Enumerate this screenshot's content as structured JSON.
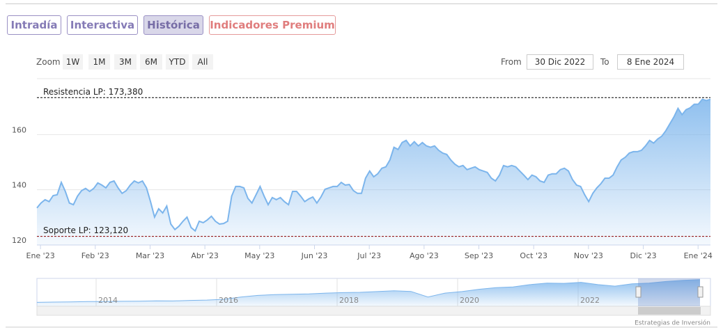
{
  "tabs": [
    "Intradía",
    "Interactiva",
    "Histórica",
    "Indicadores Premium"
  ],
  "range_selector": {
    "zoom_label": "Zoom",
    "buttons": [
      "1W",
      "1M",
      "3M",
      "6M",
      "YTD",
      "All"
    ],
    "from_label": "From",
    "from": "30 Dic 2022",
    "to_label": "To",
    "to": "8 Ene 2024"
  },
  "chart_data": {
    "type": "area",
    "xlim": [
      -0.065,
      12.226
    ],
    "xticks": [
      {
        "value": 0,
        "label": "Ene '23"
      },
      {
        "value": 1,
        "label": "Feb '23"
      },
      {
        "value": 2,
        "label": "Mar '23"
      },
      {
        "value": 3,
        "label": "Abr '23"
      },
      {
        "value": 4,
        "label": "May '23"
      },
      {
        "value": 5,
        "label": "Jun '23"
      },
      {
        "value": 6,
        "label": "Jul '23"
      },
      {
        "value": 7,
        "label": "Ago '23"
      },
      {
        "value": 8,
        "label": "Sep '23"
      },
      {
        "value": 9,
        "label": "Oct '23"
      },
      {
        "value": 10,
        "label": "Nov '23"
      },
      {
        "value": 11,
        "label": "Dic '23"
      },
      {
        "value": 12,
        "label": "Ene '24"
      }
    ],
    "ylim": [
      120,
      180
    ],
    "yticks": [
      120,
      140,
      160
    ],
    "grid": true,
    "series": [
      {
        "color": "#7cb5ec",
        "values": [
          133.4,
          135.2,
          136.4,
          135.7,
          137.9,
          138.2,
          142.7,
          139.4,
          135.2,
          134.6,
          137.7,
          139.7,
          140.5,
          139.4,
          140.5,
          142.5,
          141.7,
          140.7,
          142.7,
          143.2,
          140.7,
          138.7,
          139.7,
          141.7,
          143.2,
          142.5,
          143.2,
          140.7,
          135.7,
          130.1,
          133.1,
          131.6,
          134.1,
          127.6,
          125.6,
          126.8,
          128.6,
          130.1,
          126.3,
          125.1,
          128.6,
          128.1,
          129.1,
          130.4,
          128.6,
          127.6,
          127.8,
          128.6,
          137.7,
          141.2,
          141.2,
          140.7,
          136.9,
          135.2,
          138.2,
          141.2,
          137.7,
          134.6,
          137.2,
          136.4,
          137.2,
          135.7,
          134.6,
          139.4,
          139.4,
          137.7,
          135.7,
          136.7,
          137.4,
          135.2,
          137.4,
          140.2,
          140.7,
          141.2,
          141.2,
          142.7,
          141.7,
          141.9,
          139.7,
          138.7,
          138.7,
          144.2,
          146.8,
          144.7,
          145.8,
          147.8,
          148.3,
          150.8,
          155.4,
          154.6,
          157.1,
          157.9,
          155.9,
          157.4,
          155.9,
          157.1,
          155.9,
          155.4,
          155.9,
          154.3,
          153.3,
          152.8,
          150.8,
          149.3,
          148.3,
          148.8,
          147.3,
          147.8,
          148.3,
          147.3,
          146.8,
          146.3,
          144.2,
          143.2,
          145.3,
          148.8,
          148.3,
          148.8,
          148.3,
          146.8,
          145.3,
          143.7,
          145.3,
          144.7,
          143.2,
          142.7,
          145.3,
          145.8,
          145.8,
          147.3,
          147.8,
          146.8,
          143.7,
          141.7,
          141.2,
          138.2,
          135.7,
          138.7,
          140.7,
          142.2,
          144.2,
          144.2,
          145.3,
          148.3,
          150.8,
          151.8,
          153.3,
          153.8,
          153.8,
          154.3,
          155.9,
          157.9,
          156.9,
          158.4,
          159.4,
          161.4,
          163.9,
          166.4,
          169.5,
          167.2,
          169.0,
          169.7,
          171.0,
          171.0,
          172.8,
          172.3,
          172.8
        ]
      }
    ],
    "annotations": [
      {
        "label": "Resistencia LP: 173,380",
        "value": 173.38,
        "color": "#000000"
      },
      {
        "label": "Soporte LP: 123,120",
        "value": 123.12,
        "color": "#8b0000"
      }
    ]
  },
  "navigator": {
    "labels": [
      "2014",
      "2016",
      "2018",
      "2020",
      "2022"
    ],
    "ylim": [
      0,
      180
    ],
    "values": [
      25,
      27,
      28,
      30,
      30,
      32,
      33,
      35,
      34,
      38,
      40,
      45,
      60,
      70,
      75,
      78,
      80,
      85,
      88,
      90,
      95,
      100,
      96,
      60,
      85,
      95,
      110,
      120,
      125,
      140,
      150,
      148,
      155,
      140,
      130,
      145,
      150,
      160,
      168,
      172
    ]
  },
  "credit": "Estrategias de Inversión"
}
